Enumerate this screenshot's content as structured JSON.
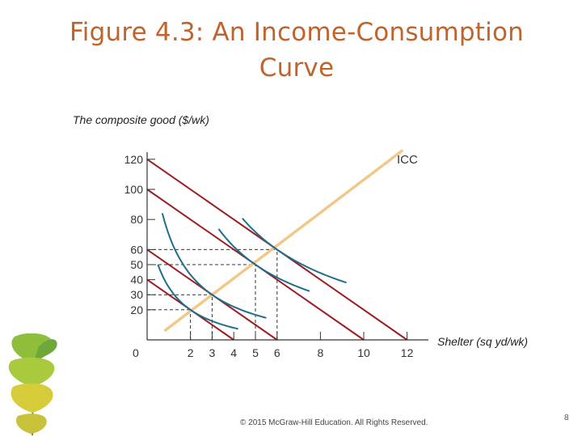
{
  "slide": {
    "title_line1": "Figure 4.3: An Income-Consumption",
    "title_line2": "Curve",
    "footer": "© 2015 McGraw-Hill Education. All Rights Reserved.",
    "page_number": "8"
  },
  "colors": {
    "title": "#c0642b",
    "budget_lines": "#9b1c22",
    "indifference_curves": "#1f6e8c",
    "icc": "#f2c88a",
    "guides": "#333333",
    "axes": "#333333"
  },
  "chart_data": {
    "type": "line",
    "ylabel": "The composite good ($/wk)",
    "xlabel": "Shelter (sq yd/wk)",
    "origin_label": "0",
    "xlim": [
      0,
      12.8
    ],
    "ylim": [
      0,
      128
    ],
    "x_ticks": [
      2,
      3,
      4,
      5,
      6,
      8,
      10,
      12
    ],
    "y_ticks": [
      20,
      30,
      40,
      50,
      60,
      80,
      100,
      120
    ],
    "budget_lines": [
      {
        "y_intercept": 40,
        "x_intercept": 4
      },
      {
        "y_intercept": 60,
        "x_intercept": 6
      },
      {
        "y_intercept": 100,
        "x_intercept": 10
      },
      {
        "y_intercept": 120,
        "x_intercept": 12
      }
    ],
    "icc": {
      "label": "ICC",
      "points": [
        {
          "x": 0.8,
          "y": 6
        },
        {
          "x": 11.8,
          "y": 126
        }
      ]
    },
    "optima": [
      {
        "x": 2,
        "y": 20
      },
      {
        "x": 3,
        "y": 30
      },
      {
        "x": 5,
        "y": 50
      },
      {
        "x": 6,
        "y": 60
      }
    ],
    "indifference_curves": [
      {
        "x_start": 0.5,
        "x_end": 4.2
      },
      {
        "x_start": 0.7,
        "x_end": 5.5
      },
      {
        "x_start": 3.3,
        "x_end": 7.5
      },
      {
        "x_start": 4.4,
        "x_end": 9.2
      }
    ]
  }
}
